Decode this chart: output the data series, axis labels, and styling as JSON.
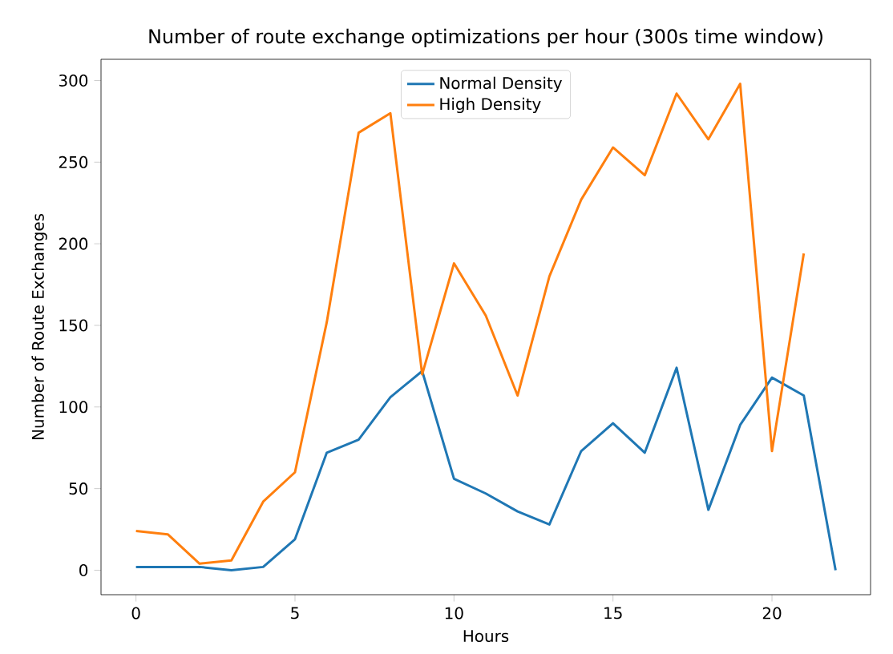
{
  "chart_data": {
    "type": "line",
    "title": "Number of route exchange optimizations per hour (300s time window)",
    "xlabel": "Hours",
    "ylabel": "Number of Route Exchanges",
    "xlim": [
      -1.1,
      23.1
    ],
    "ylim": [
      -15,
      313
    ],
    "xticks": [
      0,
      5,
      10,
      15,
      20
    ],
    "yticks": [
      0,
      50,
      100,
      150,
      200,
      250,
      300
    ],
    "legend": "top",
    "series": [
      {
        "name": "Normal Density",
        "color": "#1f77b4",
        "x": [
          0,
          1,
          2,
          3,
          4,
          5,
          6,
          7,
          8,
          9,
          10,
          11,
          12,
          13,
          14,
          15,
          16,
          17,
          18,
          19,
          20,
          21,
          22
        ],
        "values": [
          2,
          2,
          2,
          0,
          2,
          19,
          72,
          80,
          106,
          122,
          56,
          47,
          36,
          28,
          73,
          90,
          72,
          124,
          37,
          89,
          118,
          107,
          0
        ]
      },
      {
        "name": "High Density",
        "color": "#ff7f0e",
        "x": [
          0,
          1,
          2,
          3,
          4,
          5,
          6,
          7,
          8,
          9,
          10,
          11,
          12,
          13,
          14,
          15,
          16,
          17,
          18,
          19,
          20,
          21
        ],
        "values": [
          24,
          22,
          4,
          6,
          42,
          60,
          152,
          268,
          280,
          120,
          188,
          156,
          107,
          180,
          227,
          259,
          242,
          292,
          264,
          298,
          73,
          194
        ]
      }
    ]
  }
}
